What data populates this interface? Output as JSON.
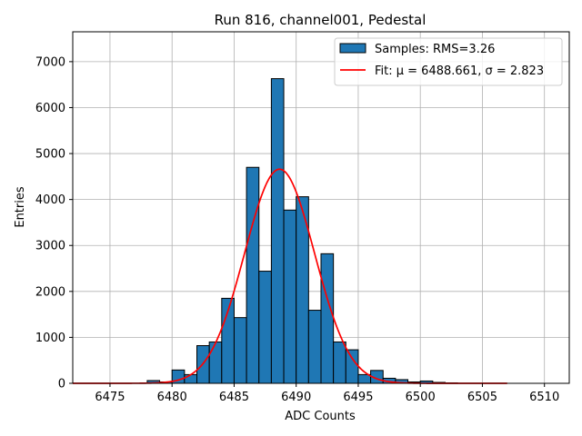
{
  "chart_data": {
    "type": "bar",
    "title": "Run 816, channel001, Pedestal",
    "xlabel": "ADC Counts",
    "ylabel": "Entries",
    "xlim": [
      6472,
      6512
    ],
    "ylim": [
      0,
      7650
    ],
    "xticks": [
      6475,
      6480,
      6485,
      6490,
      6495,
      6500,
      6505,
      6510
    ],
    "yticks": [
      0,
      1000,
      2000,
      3000,
      4000,
      5000,
      6000,
      7000
    ],
    "grid": true,
    "legend_position": "top-right",
    "bin_width": 1,
    "bar_color": "#1f77b4",
    "fit_color": "#ff0000",
    "series": [
      {
        "name": "Samples: RMS=3.26",
        "type": "histogram",
        "bin_left_edges": [
          6478,
          6479,
          6480,
          6481,
          6482,
          6483,
          6484,
          6485,
          6486,
          6487,
          6488,
          6489,
          6490,
          6491,
          6492,
          6493,
          6494,
          6495,
          6496,
          6497,
          6498,
          6499,
          6500,
          6501,
          6502
        ],
        "values": [
          60,
          30,
          290,
          190,
          820,
          900,
          1850,
          1430,
          4700,
          2440,
          6630,
          3770,
          4060,
          1590,
          2820,
          900,
          730,
          190,
          280,
          110,
          80,
          30,
          50,
          20,
          10
        ]
      },
      {
        "name": "Fit: $\\mu$ = 6488.661, $\\sigma$ = 2.823",
        "legend_text": "Fit: μ = 6488.661, σ = 2.823",
        "type": "line",
        "function": "gaussian",
        "amplitude": 4660,
        "mu": 6488.661,
        "sigma": 2.823,
        "x_range": [
          6472,
          6507
        ]
      }
    ]
  }
}
